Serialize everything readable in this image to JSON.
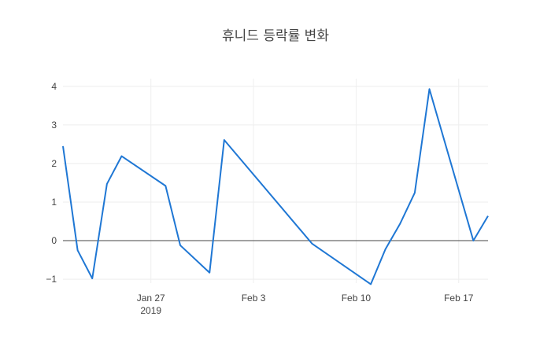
{
  "chart_data": {
    "type": "line",
    "title": "휴니드 등락률 변화",
    "xlabel": "",
    "ylabel": "",
    "x_axis_type": "date",
    "x_year_label": "2019",
    "x_ticks": [
      {
        "date": "2019-01-27",
        "label": "Jan 27"
      },
      {
        "date": "2019-02-03",
        "label": "Feb 3"
      },
      {
        "date": "2019-02-10",
        "label": "Feb 10"
      },
      {
        "date": "2019-02-17",
        "label": "Feb 17"
      }
    ],
    "xlim": [
      "2019-01-21",
      "2019-02-19"
    ],
    "ylim": [
      -1.1,
      4.2
    ],
    "y_ticks": [
      -1,
      0,
      1,
      2,
      3,
      4
    ],
    "y_tick_labels": [
      "−1",
      "0",
      "1",
      "2",
      "3",
      "4"
    ],
    "grid": true,
    "zero_line": true,
    "line_color": "#1f77d4",
    "series": [
      {
        "x": [
          "2019-01-21",
          "2019-01-22",
          "2019-01-23",
          "2019-01-24",
          "2019-01-25",
          "2019-01-28",
          "2019-01-29",
          "2019-01-31",
          "2019-02-01",
          "2019-02-07",
          "2019-02-11",
          "2019-02-12",
          "2019-02-13",
          "2019-02-14",
          "2019-02-15",
          "2019-02-18",
          "2019-02-19"
        ],
        "y": [
          2.45,
          -0.25,
          -0.98,
          1.47,
          2.19,
          1.42,
          -0.12,
          -0.83,
          2.61,
          -0.08,
          -1.13,
          -0.22,
          0.44,
          1.24,
          3.93,
          0.0,
          0.64
        ]
      }
    ]
  }
}
